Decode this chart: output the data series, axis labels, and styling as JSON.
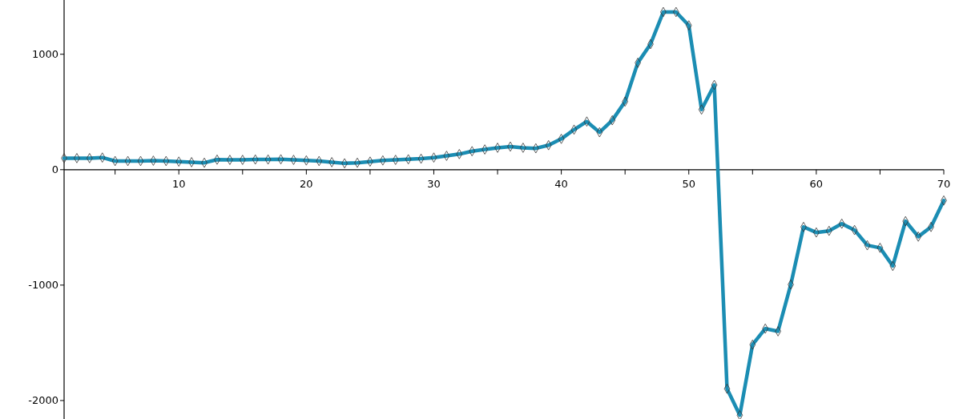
{
  "chart_data": {
    "type": "line",
    "x": [
      1,
      2,
      3,
      4,
      5,
      6,
      7,
      8,
      9,
      10,
      11,
      12,
      13,
      14,
      15,
      16,
      17,
      18,
      19,
      20,
      21,
      22,
      23,
      24,
      25,
      26,
      27,
      28,
      29,
      30,
      31,
      32,
      33,
      34,
      35,
      36,
      37,
      38,
      39,
      40,
      41,
      42,
      43,
      44,
      45,
      46,
      47,
      48,
      49,
      50,
      51,
      52,
      53,
      54,
      55,
      56,
      57,
      58,
      59,
      60,
      61,
      62,
      63,
      64,
      65,
      66,
      67,
      68,
      69,
      70
    ],
    "series": [
      {
        "color": "#1b8db3",
        "values": [
          100,
          100,
          100,
          105,
          75,
          75,
          75,
          78,
          75,
          70,
          65,
          60,
          87,
          85,
          85,
          88,
          88,
          90,
          85,
          80,
          75,
          65,
          55,
          60,
          70,
          80,
          85,
          90,
          95,
          105,
          120,
          135,
          160,
          175,
          190,
          200,
          190,
          185,
          212,
          267,
          347,
          417,
          324,
          428,
          590,
          926,
          1088,
          1366,
          1366,
          1250,
          521,
          734,
          -1898,
          -2127,
          -1516,
          -1377,
          -1400,
          -995,
          -496,
          -544,
          -530,
          -468,
          -523,
          -655,
          -677,
          -834,
          -446,
          -580,
          -496,
          -267
        ]
      }
    ],
    "xlim": [
      1,
      70
    ],
    "ylim": [
      -2160,
      1470
    ],
    "xticks": [
      {
        "value": 5,
        "label": null
      },
      10,
      {
        "value": 15,
        "label": null
      },
      20,
      {
        "value": 25,
        "label": null
      },
      30,
      {
        "value": 35,
        "label": null
      },
      40,
      {
        "value": 45,
        "label": null
      },
      50,
      {
        "value": 55,
        "label": null
      },
      60,
      {
        "value": 65,
        "label": null
      },
      70
    ],
    "yticks": [
      -2000,
      -1000,
      0,
      1000
    ],
    "marker": "diamond",
    "line_style": "solid"
  }
}
